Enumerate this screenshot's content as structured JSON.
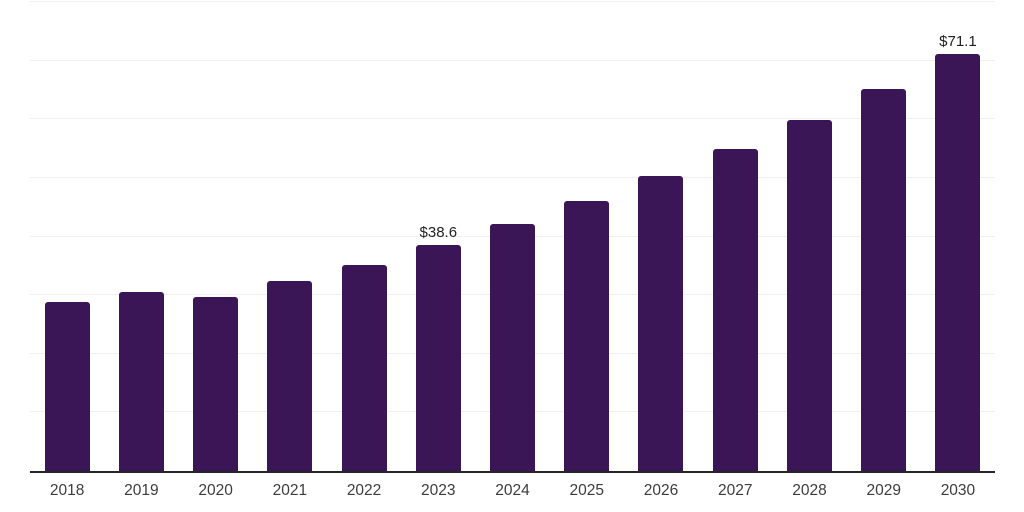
{
  "chart_data": {
    "type": "bar",
    "title": "",
    "xlabel": "",
    "ylabel": "",
    "categories": [
      "2018",
      "2019",
      "2020",
      "2021",
      "2022",
      "2023",
      "2024",
      "2025",
      "2026",
      "2027",
      "2028",
      "2029",
      "2030"
    ],
    "values": [
      28.8,
      30.6,
      29.7,
      32.4,
      35.2,
      38.6,
      42.2,
      46.1,
      50.4,
      54.9,
      59.9,
      65.2,
      71.1
    ],
    "bar_labels": [
      "",
      "",
      "",
      "",
      "",
      "$38.6",
      "",
      "",
      "",
      "",
      "",
      "",
      "$71.1"
    ],
    "ylim": [
      0,
      80
    ],
    "gridline_step": 10,
    "grid": true,
    "legend": "none",
    "y_axis_labels_visible": false,
    "colors": {
      "bar": "#3A1657",
      "axis_line": "#262626",
      "gridline": "#F0F0F0",
      "x_tick_label": "#3C3C3C",
      "data_label": "#1F1F1F",
      "background": "#FFFFFF"
    }
  }
}
